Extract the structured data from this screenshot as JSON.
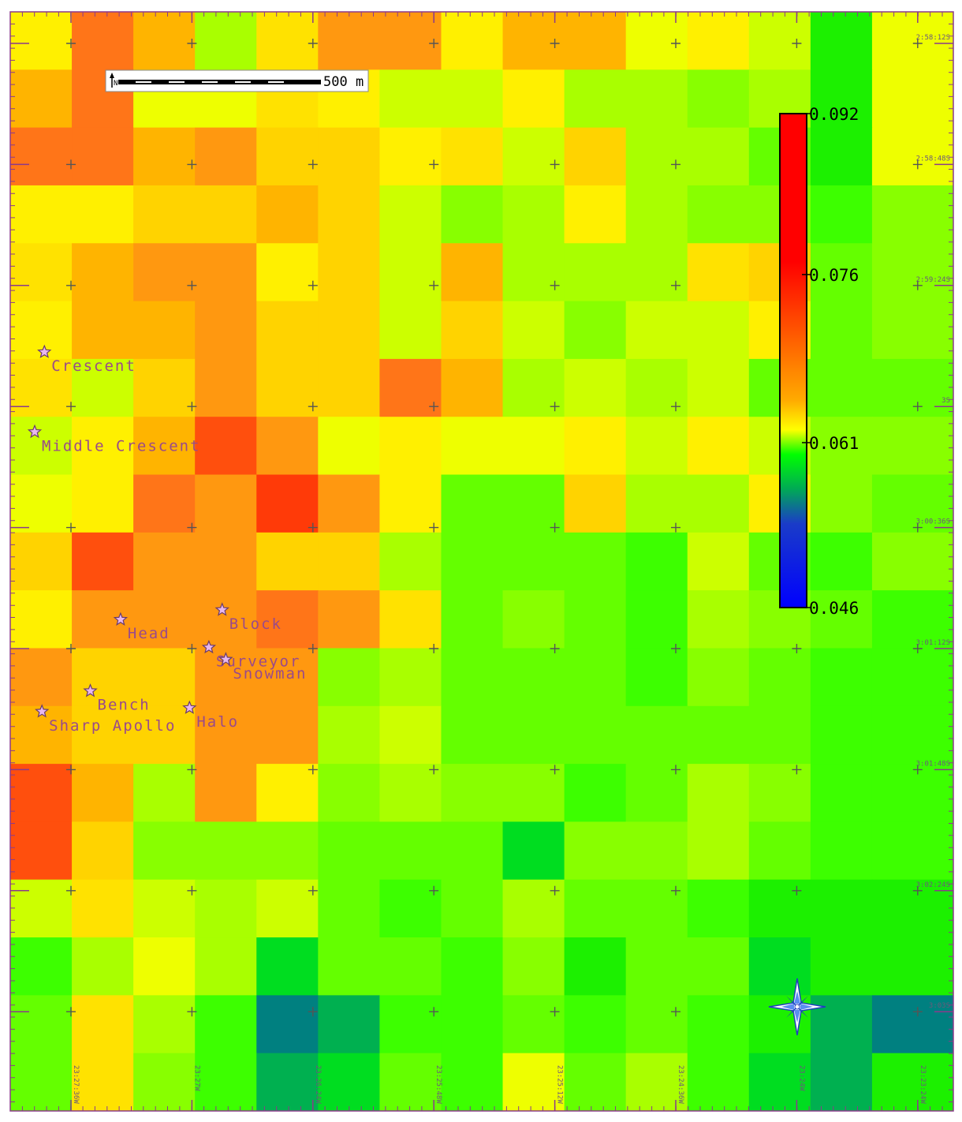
{
  "scale_bar": {
    "label": "500 m",
    "north_symbol": "N"
  },
  "colorbar": {
    "ticks": [
      {
        "value": "0.092",
        "frac": 1.0
      },
      {
        "value": "0.076",
        "frac": 0.6742
      },
      {
        "value": "0.061",
        "frac": 0.3339
      },
      {
        "value": "0.046",
        "frac": 0.0
      }
    ],
    "stops": [
      {
        "frac": 1.0,
        "color": "#ff0000"
      },
      {
        "frac": 0.7,
        "color": "#ff0000"
      },
      {
        "frac": 0.42,
        "color": "#ffaa00"
      },
      {
        "frac": 0.36,
        "color": "#ffff00"
      },
      {
        "frac": 0.31,
        "color": "#00ff00"
      },
      {
        "frac": 0.24,
        "color": "#00aa55"
      },
      {
        "frac": 0.17,
        "color": "#1a3cc8"
      },
      {
        "frac": 0.0,
        "color": "#0000ff"
      }
    ]
  },
  "cell_colors": {
    "A": "#ff7518",
    "B": "#ff4f0d",
    "C": "#ff3a08",
    "D": "#ff9810",
    "E": "#ffb400",
    "F": "#ffd300",
    "G": "#ffe200",
    "H": "#fff000",
    "I": "#eeff00",
    "J": "#ccff00",
    "K": "#a9ff00",
    "L": "#88ff00",
    "M": "#64ff00",
    "N": "#3dff00",
    "O": "#1cf000",
    "P": "#00dd20",
    "Q": "#00b050",
    "R": "#008080"
  },
  "grid_rows": [
    "HAEKGDDHEEIHJOI",
    "EAIIGHJJHKKLKOI",
    "AAEDFFHGJFKKMOI",
    "HHFFEFJLKHKLLNL",
    "GEDDHFJEKKKGFML",
    "HEEDFFJFJLJJHML",
    "GJFDFFAEKJKJMMM",
    "JHEBDIHIIHJHJLL",
    "IHADCDHMMFKKHLM",
    "FBDDFFKMMMNJMNL",
    "HDDDADGMLMNKLMN",
    "DFFDDLKMMMNLMNN",
    "EFFDDKJMMMMMMNN",
    "BEKDHLKLLNMKLNN",
    "BFLLLMMMPLLKMNN",
    "JGJKJMNMKMMNOOO",
    "NKIKPMMNLOMMPOO",
    "MGKNRQNNMNMNOQR",
    "MGLNQPMNIMKNPQO"
  ],
  "features": [
    {
      "name": "Crescent",
      "lon": -23.4622,
      "lat": -2.9955
    },
    {
      "name": "Middle Crescent",
      "lon": -23.463,
      "lat": -3.0021
    },
    {
      "name": "Head",
      "lon": -23.4559,
      "lat": -3.0176
    },
    {
      "name": "Block",
      "lon": -23.4475,
      "lat": -3.0168
    },
    {
      "name": "Surveyor",
      "lon": -23.4486,
      "lat": -3.0199
    },
    {
      "name": "Snowman",
      "lon": -23.4472,
      "lat": -3.0209
    },
    {
      "name": "Bench",
      "lon": -23.4584,
      "lat": -3.0235
    },
    {
      "name": "Halo",
      "lon": -23.4502,
      "lat": -3.0249
    },
    {
      "name": "Sharp Apollo",
      "lon": -23.4624,
      "lat": -3.0252
    }
  ],
  "lat_labels": [
    {
      "text": "2:58:12S",
      "value": -2.97
    },
    {
      "text": "2:58:48S",
      "value": -2.98
    },
    {
      "text": "2:59:24S",
      "value": -2.99
    },
    {
      "text": "3S",
      "value": -3.0
    },
    {
      "text": "3:00:36S",
      "value": -3.01
    },
    {
      "text": "3:01:12S",
      "value": -3.02
    },
    {
      "text": "3:01:48S",
      "value": -3.03
    },
    {
      "text": "3:02:24S",
      "value": -3.04
    },
    {
      "text": "3:03S",
      "value": -3.05
    }
  ],
  "lon_labels": [
    {
      "text": "23:27:36W",
      "value": -23.46
    },
    {
      "text": "23:27W",
      "value": -23.45
    },
    {
      "text": "23:26:24W",
      "value": -23.44
    },
    {
      "text": "23:25:48W",
      "value": -23.43
    },
    {
      "text": "23:25:12W",
      "value": -23.42
    },
    {
      "text": "23:24:36W",
      "value": -23.41
    },
    {
      "text": "23:24W",
      "value": -23.4
    },
    {
      "text": "23:23:24W",
      "value": -23.39
    }
  ],
  "compass_icon": "compass-rose-icon"
}
